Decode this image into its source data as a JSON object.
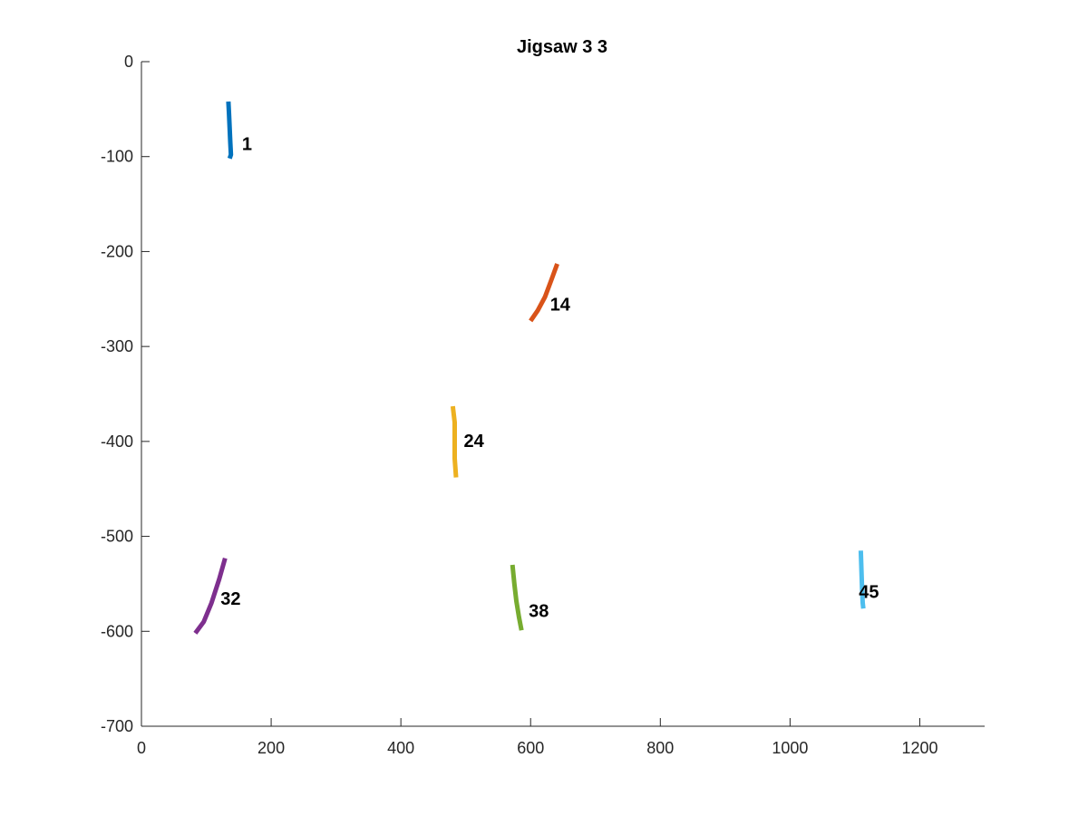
{
  "chart_data": {
    "type": "line",
    "title": "Jigsaw 3 3",
    "xlabel": "",
    "ylabel": "",
    "xlim": [
      0,
      1300
    ],
    "ylim": [
      -700,
      0
    ],
    "x_ticks": [
      0,
      200,
      400,
      600,
      800,
      1000,
      1200
    ],
    "y_ticks": [
      0,
      -100,
      -200,
      -300,
      -400,
      -500,
      -600,
      -700
    ],
    "x_tick_labels": [
      "0",
      "200",
      "400",
      "600",
      "800",
      "1000",
      "1200"
    ],
    "y_tick_labels": [
      "0",
      "-100",
      "-200",
      "-300",
      "-400",
      "-500",
      "-600",
      "-700"
    ],
    "grid": false,
    "legend": false,
    "series": [
      {
        "label": "1",
        "color": "#0072BD",
        "label_pos": [
          155,
          -93
        ],
        "points": [
          [
            134,
            -42
          ],
          [
            135,
            -55
          ],
          [
            136,
            -70
          ],
          [
            137,
            -85
          ],
          [
            138,
            -98
          ],
          [
            136,
            -102
          ]
        ]
      },
      {
        "label": "14",
        "color": "#D95319",
        "label_pos": [
          630,
          -262
        ],
        "points": [
          [
            641,
            -213
          ],
          [
            632,
            -230
          ],
          [
            622,
            -248
          ],
          [
            611,
            -262
          ],
          [
            600,
            -273
          ]
        ]
      },
      {
        "label": "24",
        "color": "#EDB120",
        "label_pos": [
          497,
          -406
        ],
        "points": [
          [
            480,
            -363
          ],
          [
            483,
            -380
          ],
          [
            483,
            -400
          ],
          [
            483,
            -418
          ],
          [
            485,
            -438
          ]
        ]
      },
      {
        "label": "32",
        "color": "#7E2F8E",
        "label_pos": [
          122,
          -572
        ],
        "points": [
          [
            129,
            -523
          ],
          [
            120,
            -545
          ],
          [
            108,
            -570
          ],
          [
            96,
            -590
          ],
          [
            83,
            -602
          ]
        ]
      },
      {
        "label": "38",
        "color": "#77AC30",
        "label_pos": [
          597,
          -585
        ],
        "points": [
          [
            572,
            -530
          ],
          [
            575,
            -550
          ],
          [
            578,
            -568
          ],
          [
            582,
            -585
          ],
          [
            586,
            -599
          ]
        ]
      },
      {
        "label": "45",
        "color": "#4DBEEE",
        "label_pos": [
          1106,
          -565
        ],
        "points": [
          [
            1109,
            -515
          ],
          [
            1110,
            -535
          ],
          [
            1111,
            -555
          ],
          [
            1112,
            -570
          ],
          [
            1113,
            -576
          ]
        ]
      }
    ]
  }
}
